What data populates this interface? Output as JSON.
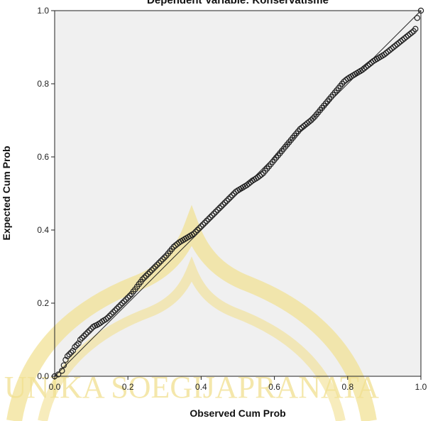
{
  "watermark": {
    "text": "UNIKA SOEGIJAPRANATA",
    "color": "#f1e08f"
  },
  "chart_data": {
    "type": "scatter",
    "title": "Dependent Variable: Konservatisme",
    "xlabel": "Observed Cum Prob",
    "ylabel": "Expected Cum Prob",
    "xlim": [
      0.0,
      1.0
    ],
    "ylim": [
      0.0,
      1.0
    ],
    "xticks": [
      "0.0",
      "0.2",
      "0.4",
      "0.6",
      "0.8",
      "1.0"
    ],
    "yticks": [
      "0.0",
      "0.2",
      "0.4",
      "0.6",
      "0.8",
      "1.0"
    ],
    "grid": false,
    "reference_line": [
      [
        0,
        0
      ],
      [
        1,
        1
      ]
    ],
    "colors": {
      "plot_background": "#f0f0f0",
      "points": "#222222",
      "line": "#222222"
    },
    "series": [
      {
        "x": [
          0.0,
          0.01,
          0.02,
          0.025,
          0.03,
          0.035,
          0.04,
          0.045,
          0.05,
          0.055,
          0.06,
          0.065,
          0.07,
          0.075,
          0.08,
          0.085,
          0.09,
          0.095,
          0.1,
          0.105,
          0.11,
          0.115,
          0.12,
          0.125,
          0.13,
          0.135,
          0.14,
          0.145,
          0.15,
          0.155,
          0.16,
          0.165,
          0.17,
          0.175,
          0.18,
          0.185,
          0.19,
          0.195,
          0.2,
          0.205,
          0.21,
          0.215,
          0.22,
          0.225,
          0.23,
          0.235,
          0.24,
          0.245,
          0.25,
          0.255,
          0.26,
          0.265,
          0.27,
          0.275,
          0.28,
          0.285,
          0.29,
          0.295,
          0.3,
          0.305,
          0.31,
          0.315,
          0.32,
          0.325,
          0.33,
          0.335,
          0.34,
          0.345,
          0.35,
          0.355,
          0.36,
          0.365,
          0.37,
          0.375,
          0.38,
          0.385,
          0.39,
          0.395,
          0.4,
          0.405,
          0.41,
          0.415,
          0.42,
          0.425,
          0.43,
          0.435,
          0.44,
          0.445,
          0.45,
          0.455,
          0.46,
          0.465,
          0.47,
          0.475,
          0.48,
          0.485,
          0.49,
          0.495,
          0.5,
          0.505,
          0.51,
          0.515,
          0.52,
          0.525,
          0.53,
          0.535,
          0.54,
          0.545,
          0.55,
          0.555,
          0.56,
          0.565,
          0.57,
          0.575,
          0.58,
          0.585,
          0.59,
          0.595,
          0.6,
          0.605,
          0.61,
          0.615,
          0.62,
          0.625,
          0.63,
          0.635,
          0.64,
          0.645,
          0.65,
          0.655,
          0.66,
          0.665,
          0.67,
          0.675,
          0.68,
          0.685,
          0.69,
          0.695,
          0.7,
          0.705,
          0.71,
          0.715,
          0.72,
          0.725,
          0.73,
          0.735,
          0.74,
          0.745,
          0.75,
          0.755,
          0.76,
          0.765,
          0.77,
          0.775,
          0.78,
          0.785,
          0.79,
          0.795,
          0.8,
          0.805,
          0.81,
          0.815,
          0.82,
          0.825,
          0.83,
          0.835,
          0.84,
          0.845,
          0.85,
          0.855,
          0.86,
          0.865,
          0.87,
          0.875,
          0.88,
          0.885,
          0.89,
          0.895,
          0.9,
          0.905,
          0.91,
          0.915,
          0.92,
          0.925,
          0.93,
          0.935,
          0.94,
          0.945,
          0.95,
          0.955,
          0.96,
          0.965,
          0.97,
          0.975,
          0.98,
          0.985,
          0.99,
          1.0
        ],
        "y": [
          0.0,
          0.005,
          0.015,
          0.03,
          0.045,
          0.055,
          0.06,
          0.065,
          0.07,
          0.08,
          0.085,
          0.09,
          0.1,
          0.105,
          0.11,
          0.115,
          0.12,
          0.125,
          0.13,
          0.135,
          0.138,
          0.14,
          0.143,
          0.146,
          0.15,
          0.153,
          0.156,
          0.16,
          0.165,
          0.17,
          0.175,
          0.18,
          0.185,
          0.19,
          0.195,
          0.2,
          0.205,
          0.21,
          0.215,
          0.22,
          0.225,
          0.232,
          0.238,
          0.245,
          0.252,
          0.258,
          0.265,
          0.27,
          0.275,
          0.28,
          0.285,
          0.29,
          0.295,
          0.3,
          0.305,
          0.31,
          0.315,
          0.32,
          0.325,
          0.33,
          0.336,
          0.342,
          0.348,
          0.354,
          0.358,
          0.362,
          0.366,
          0.369,
          0.372,
          0.375,
          0.378,
          0.381,
          0.384,
          0.387,
          0.39,
          0.395,
          0.4,
          0.405,
          0.41,
          0.415,
          0.42,
          0.425,
          0.43,
          0.435,
          0.44,
          0.445,
          0.45,
          0.455,
          0.46,
          0.465,
          0.47,
          0.475,
          0.48,
          0.485,
          0.49,
          0.495,
          0.5,
          0.505,
          0.508,
          0.511,
          0.514,
          0.517,
          0.52,
          0.523,
          0.527,
          0.531,
          0.535,
          0.538,
          0.541,
          0.544,
          0.548,
          0.552,
          0.556,
          0.562,
          0.568,
          0.574,
          0.58,
          0.586,
          0.592,
          0.598,
          0.604,
          0.61,
          0.616,
          0.622,
          0.628,
          0.634,
          0.64,
          0.646,
          0.652,
          0.658,
          0.664,
          0.67,
          0.676,
          0.68,
          0.684,
          0.688,
          0.692,
          0.696,
          0.7,
          0.705,
          0.71,
          0.716,
          0.722,
          0.728,
          0.734,
          0.74,
          0.746,
          0.752,
          0.758,
          0.764,
          0.77,
          0.776,
          0.782,
          0.788,
          0.794,
          0.8,
          0.806,
          0.81,
          0.814,
          0.817,
          0.82,
          0.823,
          0.826,
          0.829,
          0.832,
          0.835,
          0.838,
          0.842,
          0.846,
          0.85,
          0.854,
          0.858,
          0.862,
          0.865,
          0.868,
          0.871,
          0.874,
          0.877,
          0.88,
          0.884,
          0.888,
          0.892,
          0.896,
          0.9,
          0.904,
          0.908,
          0.912,
          0.916,
          0.92,
          0.924,
          0.928,
          0.932,
          0.936,
          0.94,
          0.944,
          0.95,
          0.98,
          1.0
        ]
      }
    ]
  }
}
